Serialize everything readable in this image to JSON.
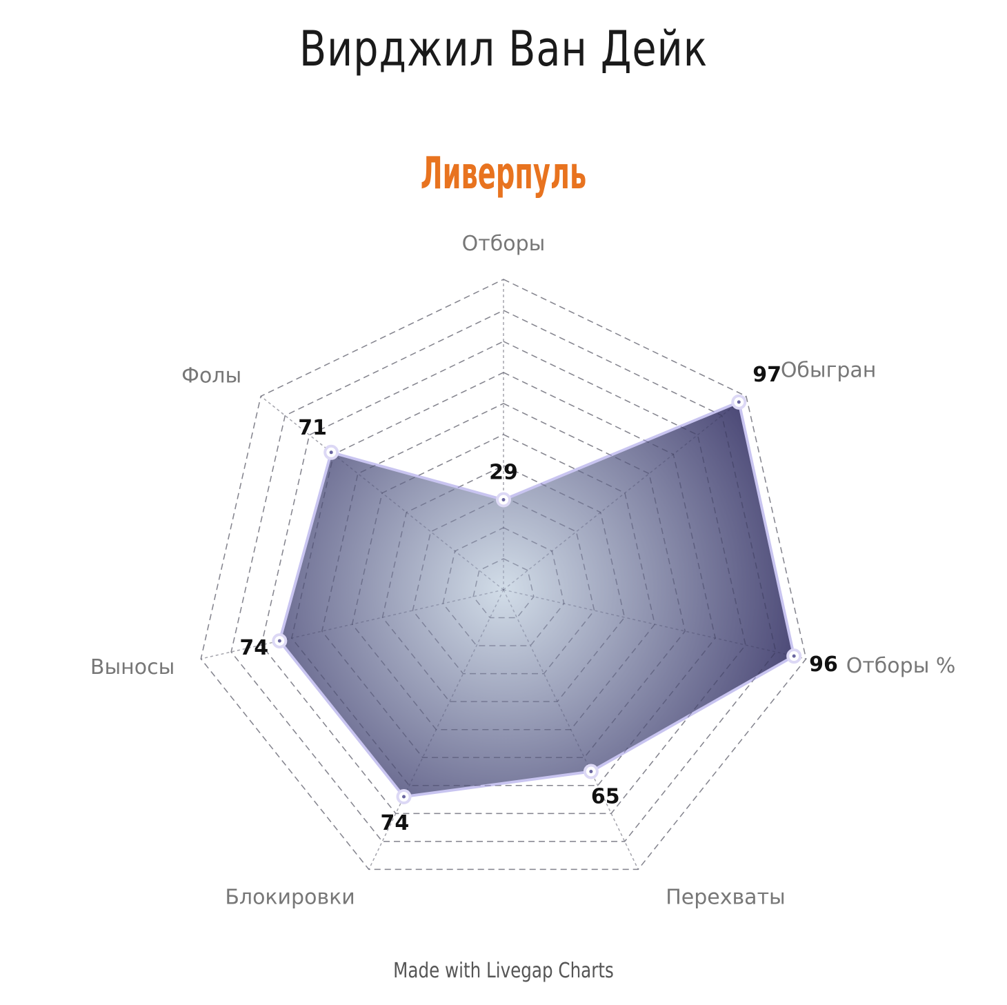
{
  "chart_data": {
    "type": "radar",
    "title": "Вирджил Ван Дейк",
    "subtitle": "Ливерпуль",
    "categories": [
      "Отборы",
      "Обыгран",
      "Отборы %",
      "Перехваты",
      "Блокировки",
      "Выносы",
      "Фолы"
    ],
    "series": [
      {
        "values": [
          29,
          97,
          96,
          65,
          74,
          74,
          71
        ]
      }
    ],
    "rlim": [
      0,
      100
    ],
    "grid_levels": 10,
    "grid": true,
    "colors": {
      "fill_inner": "#d2dde8",
      "fill_outer": "#4a4775",
      "line": "#c8c4f0",
      "grid": "#aaaaaa",
      "title": "#1a1a1a",
      "subtitle": "#e8731f"
    }
  },
  "footer": {
    "credit": "Made with Livegap Charts"
  }
}
